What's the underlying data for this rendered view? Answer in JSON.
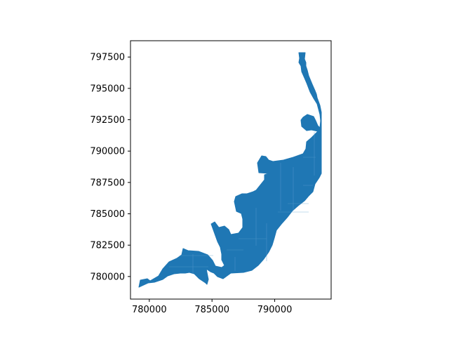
{
  "chart_data": {
    "type": "map",
    "x_ticks": [
      "780000",
      "785000",
      "790000"
    ],
    "y_ticks": [
      "780000",
      "782500",
      "785000",
      "787500",
      "790000",
      "792500",
      "795000",
      "797500"
    ],
    "xlim": [
      778500,
      794500
    ],
    "ylim": [
      778200,
      798800
    ],
    "fill_color": "#1f77b4",
    "grid": false
  }
}
